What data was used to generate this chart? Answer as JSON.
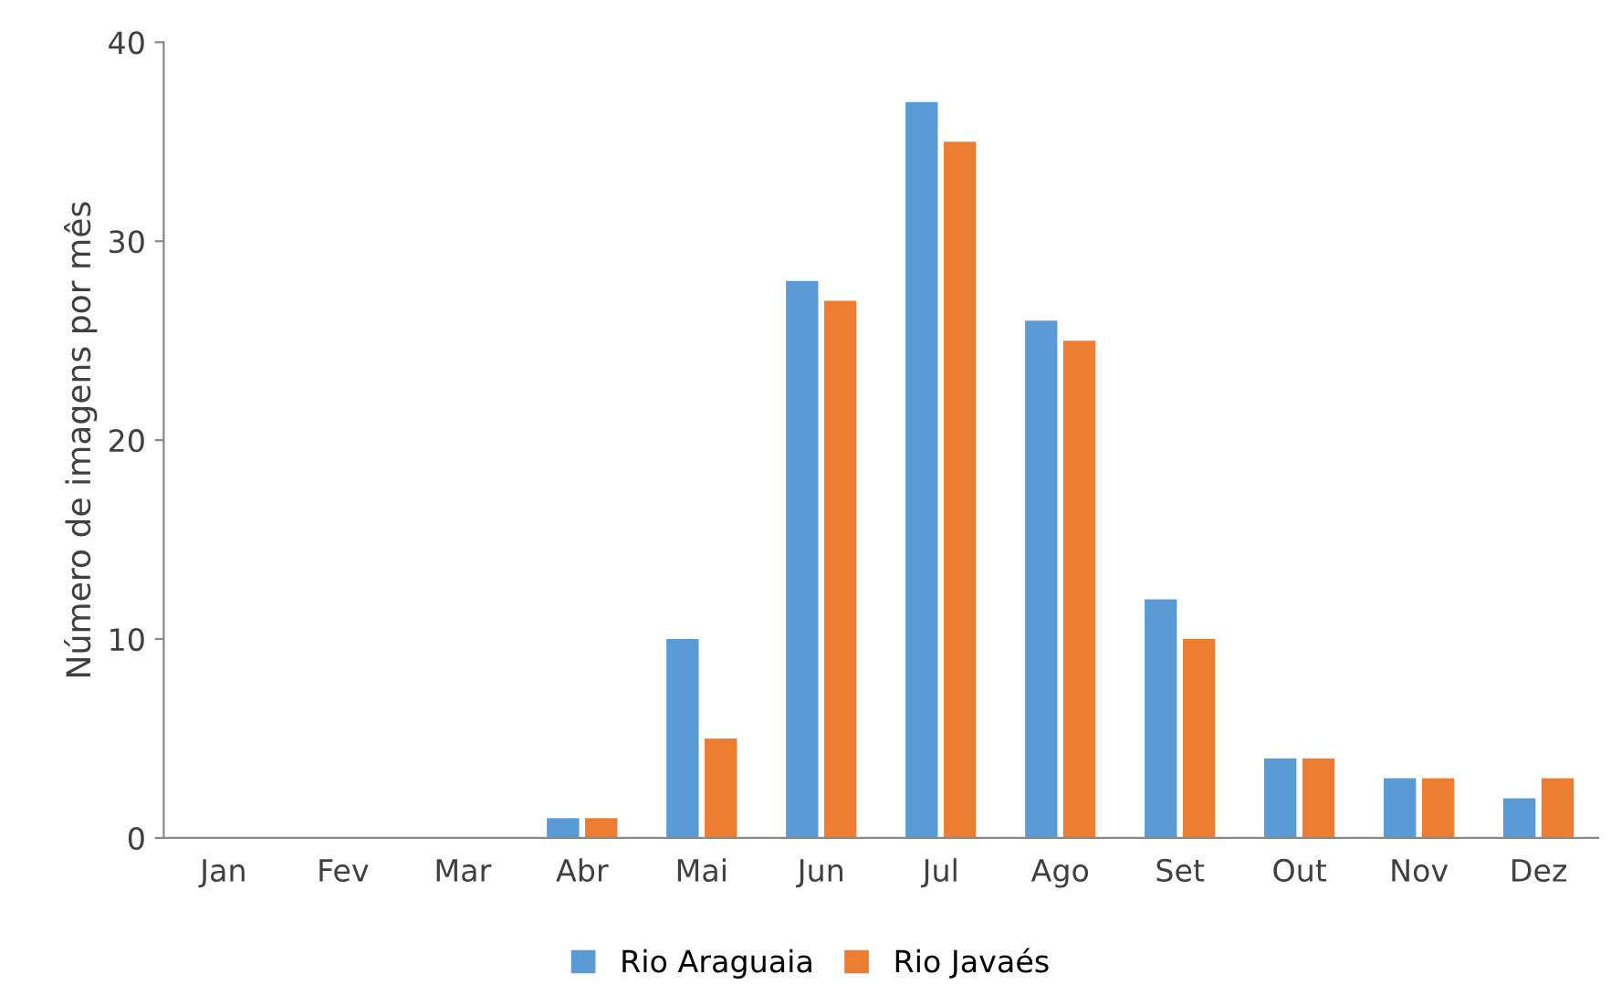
{
  "chart_data": {
    "type": "bar",
    "ylabel": "Número de imagens por mês",
    "categories": [
      "Jan",
      "Fev",
      "Mar",
      "Abr",
      "Mai",
      "Jun",
      "Jul",
      "Ago",
      "Set",
      "Out",
      "Nov",
      "Dez"
    ],
    "series": [
      {
        "name": "Rio Araguaia",
        "color": "#5b9bd5",
        "values": [
          0,
          0,
          0,
          1,
          10,
          28,
          37,
          26,
          12,
          4,
          3,
          2
        ]
      },
      {
        "name": "Rio Javaés",
        "color": "#ed7d31",
        "values": [
          0,
          0,
          0,
          1,
          5,
          27,
          35,
          25,
          10,
          4,
          3,
          3
        ]
      }
    ],
    "ylim": [
      0,
      40
    ],
    "yticks": [
      0,
      10,
      20,
      30,
      40
    ],
    "grid": false,
    "legend": "bottom"
  }
}
